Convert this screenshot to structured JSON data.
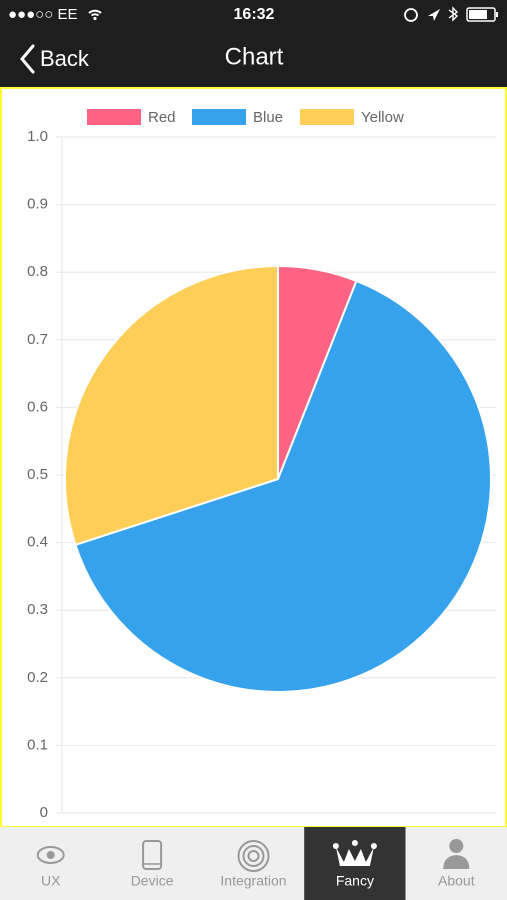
{
  "status_bar": {
    "carrier": "●●●○○ EE",
    "time": "16:32"
  },
  "nav": {
    "back": "Back",
    "title": "Chart"
  },
  "chart_data": {
    "type": "pie",
    "categories": [
      "Red",
      "Blue",
      "Yellow"
    ],
    "values": [
      6,
      64,
      30
    ],
    "colors": [
      "#ff6384",
      "#36a2eb",
      "#ffce56"
    ],
    "ylim": [
      0,
      1
    ],
    "yticks": [
      0,
      0.1,
      0.2,
      0.3,
      0.4,
      0.5,
      0.6,
      0.7,
      0.8,
      0.9,
      {
        "value": 1,
        "label": "1.0"
      }
    ],
    "grid": true,
    "legend": "top"
  },
  "tabs": [
    "UX",
    "Device",
    "Integration",
    "Fancy",
    "About"
  ],
  "selected_tab": 3
}
